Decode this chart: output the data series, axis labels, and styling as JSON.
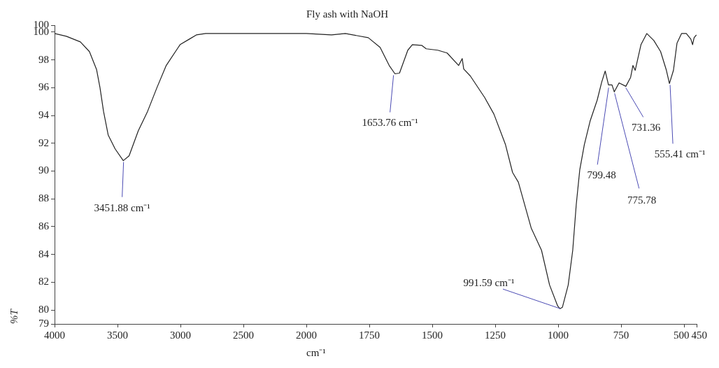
{
  "chart_data": [
    {
      "type": "line",
      "ylabel": "%T",
      "xlim": [
        4000,
        2000
      ],
      "xticks": [
        4000,
        3500,
        3000,
        2500,
        2000
      ],
      "ylim": [
        79,
        100.5
      ],
      "yticks": [
        79,
        80,
        82,
        84,
        86,
        88,
        90,
        92,
        94,
        96,
        98,
        100,
        {
          "value": 100.5,
          "label": "100"
        }
      ],
      "grid": false,
      "legend": false,
      "marker": "none",
      "line_style": "solid",
      "series": [
        {
          "color": "#222222",
          "x": [
            4000,
            3906,
            3795,
            3723,
            3666,
            3639,
            3611,
            3574,
            3519,
            3454,
            3408,
            3335,
            3261,
            3187,
            3113,
            3003,
            2929,
            2874,
            2800,
            2400,
            2000
          ],
          "values": [
            99.9,
            99.7,
            99.3,
            98.6,
            97.3,
            96.0,
            94.3,
            92.6,
            91.6,
            90.75,
            91.1,
            92.9,
            94.3,
            96.0,
            97.6,
            99.1,
            99.5,
            99.8,
            99.9,
            99.9,
            99.9
          ]
        }
      ],
      "annotations": [
        {
          "text": "3451.88 cm⁻¹",
          "x": 3451.88,
          "y": 90.75
        }
      ]
    },
    {
      "type": "line",
      "title": "Fly ash with NaOH",
      "xlabel": "cm⁻¹",
      "xlim": [
        2000,
        450
      ],
      "xticks": [
        1750,
        1500,
        1250,
        1000,
        750,
        500,
        450
      ],
      "ylim": [
        79,
        100.5
      ],
      "yticks": [
        79,
        80,
        82,
        84,
        86,
        88,
        90,
        92,
        94,
        96,
        98,
        100,
        100.5
      ],
      "tick_labels": "x",
      "grid": false,
      "legend": false,
      "marker": "none",
      "line_style": "solid",
      "series": [
        {
          "color": "#222222",
          "x": [
            2000,
            1900,
            1845,
            1754,
            1707,
            1671,
            1648,
            1630,
            1597,
            1579,
            1542,
            1524,
            1478,
            1441,
            1395,
            1381,
            1375,
            1349,
            1292,
            1255,
            1209,
            1181,
            1158,
            1107,
            1066,
            1034,
            1002,
            993,
            983,
            960,
            942,
            928,
            914,
            896,
            873,
            845,
            827,
            813,
            800,
            786,
            777,
            758,
            731,
            712,
            703,
            694,
            671,
            648,
            620,
            593,
            570,
            558,
            542,
            528,
            510,
            491,
            473,
            466,
            460,
            451
          ],
          "values": [
            99.9,
            99.8,
            99.9,
            99.6,
            98.9,
            97.6,
            97.0,
            97.05,
            98.7,
            99.1,
            99.05,
            98.8,
            98.7,
            98.5,
            97.6,
            98.1,
            97.35,
            96.85,
            95.3,
            94.1,
            91.9,
            89.9,
            89.2,
            85.9,
            84.3,
            81.8,
            80.3,
            80.1,
            80.2,
            81.8,
            84.3,
            87.6,
            90.1,
            91.9,
            93.6,
            95.1,
            96.4,
            97.2,
            96.2,
            96.2,
            95.7,
            96.35,
            96.1,
            96.75,
            97.6,
            97.25,
            99.1,
            99.9,
            99.4,
            98.6,
            97.25,
            96.3,
            97.25,
            99.2,
            99.9,
            99.9,
            99.5,
            99.1,
            99.6,
            99.8
          ]
        }
      ],
      "annotations": [
        {
          "text": "1653.76 cm⁻¹",
          "x": 1653.76,
          "y": 97.0
        },
        {
          "text": "991.59 cm⁻¹",
          "x": 991.59,
          "y": 80.1
        },
        {
          "text": "799.48",
          "x": 799.48,
          "y": 96.1
        },
        {
          "text": "775.78",
          "x": 775.78,
          "y": 95.7
        },
        {
          "text": "731.36",
          "x": 731.36,
          "y": 96.1
        },
        {
          "text": "555.41 cm⁻¹",
          "x": 555.41,
          "y": 96.3
        }
      ]
    }
  ]
}
